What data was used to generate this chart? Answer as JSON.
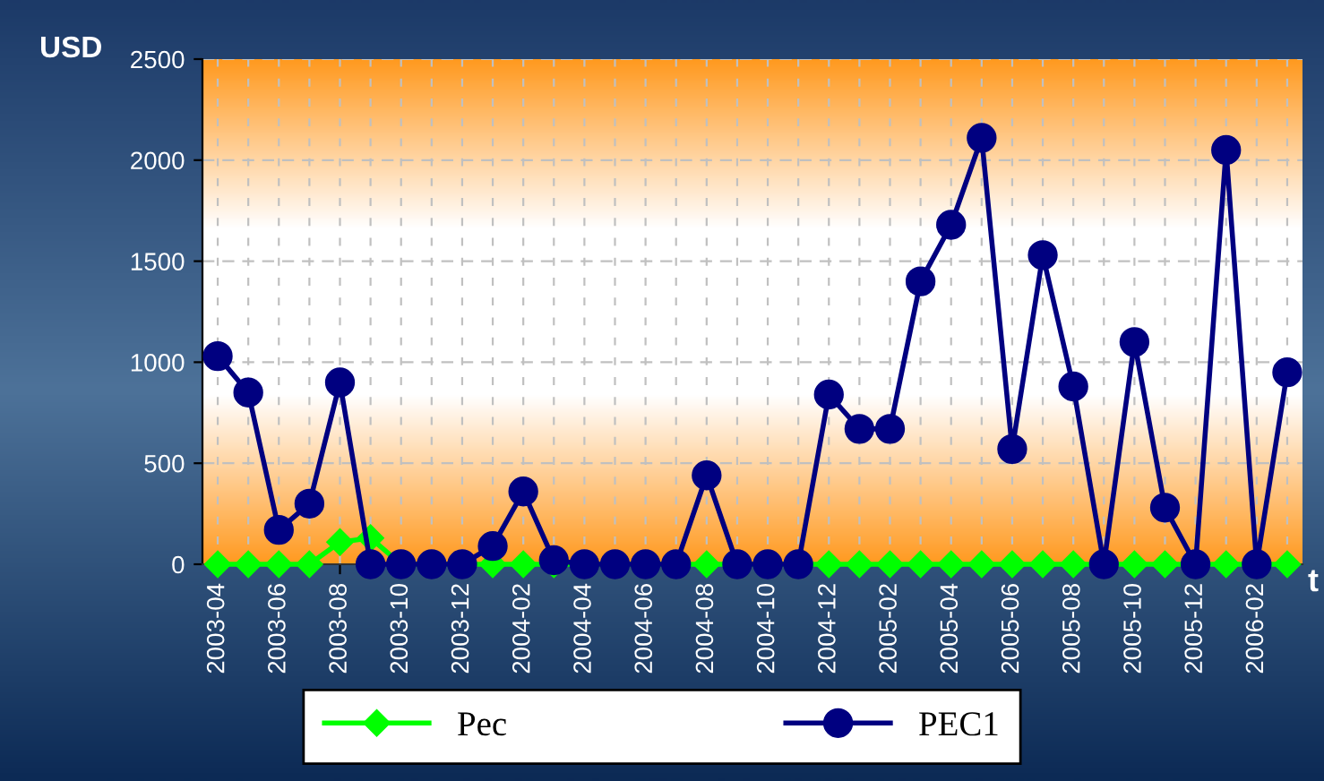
{
  "chart_data": {
    "type": "line",
    "ylabel": "USD",
    "xlabel": "t",
    "categories": [
      "2003-04",
      null,
      "2003-06",
      null,
      "2003-08",
      null,
      "2003-10",
      null,
      "2003-12",
      null,
      "2004-02",
      null,
      "2004-04",
      null,
      "2004-06",
      null,
      "2004-08",
      null,
      "2004-10",
      null,
      "2004-12",
      null,
      "2005-02",
      null,
      "2005-04",
      null,
      "2005-06",
      null,
      "2005-08",
      null,
      "2005-10",
      null,
      "2005-12",
      null,
      "2006-02",
      null
    ],
    "series": [
      {
        "name": "Pec",
        "color": "#00ff00",
        "marker": "diamond",
        "values": [
          0,
          0,
          0,
          0,
          110,
          130,
          0,
          0,
          0,
          0,
          0,
          0,
          0,
          0,
          0,
          0,
          0,
          0,
          0,
          0,
          0,
          0,
          0,
          0,
          0,
          0,
          0,
          0,
          0,
          0,
          0,
          0,
          0,
          0,
          0,
          0
        ]
      },
      {
        "name": "PEC1",
        "color": "#000080",
        "marker": "circle",
        "values": [
          1030,
          850,
          170,
          300,
          900,
          0,
          0,
          0,
          0,
          90,
          360,
          20,
          0,
          0,
          0,
          0,
          440,
          0,
          0,
          0,
          840,
          670,
          670,
          1400,
          1680,
          2110,
          570,
          1530,
          880,
          0,
          1100,
          280,
          0,
          2050,
          0,
          950
        ]
      }
    ],
    "ylim": [
      0,
      2500
    ],
    "yticks": [
      0,
      500,
      1000,
      1500,
      2000,
      2500
    ],
    "grid": true,
    "legend": "bottom"
  }
}
